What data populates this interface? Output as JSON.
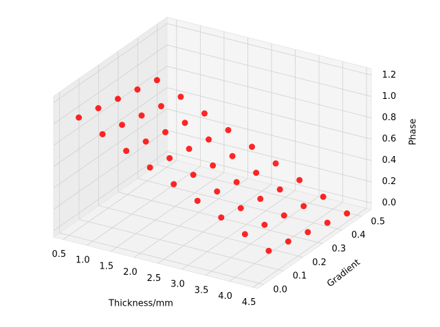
{
  "chart_data": {
    "type": "scatter3d",
    "color": "#ff0000",
    "grid": true,
    "xlabel": "Thickness/mm",
    "ylabel": "Gradient",
    "zlabel": "Phase",
    "x": [
      0.5,
      0.5,
      0.5,
      0.5,
      0.5,
      1.0,
      1.0,
      1.0,
      1.0,
      1.0,
      1.5,
      1.5,
      1.5,
      1.5,
      1.5,
      2.0,
      2.0,
      2.0,
      2.0,
      2.0,
      2.5,
      2.5,
      2.5,
      2.5,
      2.5,
      3.0,
      3.0,
      3.0,
      3.0,
      3.0,
      3.5,
      3.5,
      3.5,
      3.5,
      3.5,
      4.0,
      4.0,
      4.0,
      4.0,
      4.0,
      4.5,
      4.5,
      4.5,
      4.5,
      4.5
    ],
    "y": [
      0.05,
      0.15,
      0.25,
      0.35,
      0.45,
      0.05,
      0.15,
      0.25,
      0.35,
      0.45,
      0.05,
      0.15,
      0.25,
      0.35,
      0.45,
      0.05,
      0.15,
      0.25,
      0.35,
      0.45,
      0.05,
      0.15,
      0.25,
      0.35,
      0.45,
      0.05,
      0.15,
      0.25,
      0.35,
      0.45,
      0.05,
      0.15,
      0.25,
      0.35,
      0.45,
      0.05,
      0.15,
      0.25,
      0.35,
      0.45,
      0.05,
      0.15,
      0.25,
      0.35,
      0.45
    ],
    "z": [
      0.98,
      0.94,
      0.9,
      0.86,
      0.82,
      0.88,
      0.84,
      0.8,
      0.76,
      0.72,
      0.78,
      0.74,
      0.7,
      0.66,
      0.62,
      0.68,
      0.64,
      0.6,
      0.56,
      0.52,
      0.58,
      0.54,
      0.5,
      0.46,
      0.42,
      0.48,
      0.44,
      0.4,
      0.36,
      0.32,
      0.38,
      0.34,
      0.3,
      0.26,
      0.22,
      0.28,
      0.24,
      0.2,
      0.16,
      0.12,
      0.18,
      0.14,
      0.1,
      0.06,
      0.02
    ],
    "xlim": [
      0.3,
      4.6
    ],
    "ylim": [
      -0.03,
      0.55
    ],
    "zlim": [
      -0.06,
      1.26
    ],
    "xticks": [
      0.5,
      {
        "value": 1,
        "label": "1.0"
      },
      1.5,
      {
        "value": 2,
        "label": "2.0"
      },
      2.5,
      {
        "value": 3,
        "label": "3.0"
      },
      3.5,
      {
        "value": 4,
        "label": "4.0"
      },
      4.5
    ],
    "yticks": [
      {
        "value": 0,
        "label": "0.0"
      },
      0.1,
      0.2,
      0.3,
      0.4,
      0.5
    ],
    "zticks": [
      {
        "value": 0,
        "label": "0.0"
      },
      0.2,
      0.4,
      0.6,
      0.8,
      {
        "value": 1,
        "label": "1.0"
      },
      1.2
    ]
  }
}
